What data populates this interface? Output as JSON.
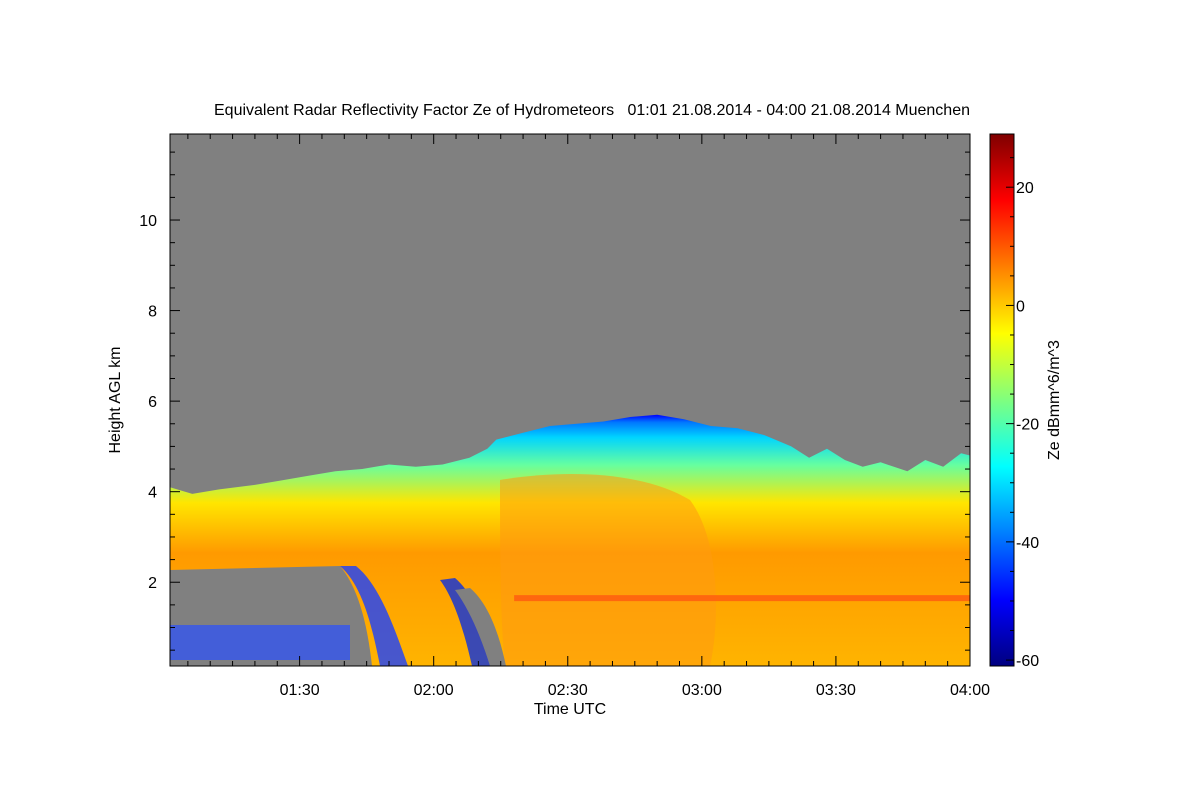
{
  "chart_data": {
    "type": "heatmap",
    "title": "Equivalent Radar Reflectivity Factor Ze of Hydrometeors   01:01 21.08.2014 - 04:00 21.08.2014 Muenchen",
    "xlabel": "Time UTC",
    "ylabel": "Height AGL km",
    "x_ticks": [
      "01:30",
      "02:00",
      "02:30",
      "03:00",
      "03:30",
      "04:00"
    ],
    "x_tick_minutes": [
      90,
      120,
      150,
      180,
      210,
      240
    ],
    "xlim_minutes": [
      61,
      240
    ],
    "y_ticks": [
      2,
      4,
      6,
      8,
      10
    ],
    "ylim": [
      0.15,
      11.9
    ],
    "colorbar": {
      "label": "Ze dBmm^6/m^3",
      "ticks": [
        20,
        0,
        -20,
        -40,
        -60
      ],
      "range": [
        -61,
        29
      ],
      "colors": [
        "#00007f",
        "#0000ff",
        "#007fff",
        "#00ffff",
        "#7fff7f",
        "#ffff00",
        "#ff7f00",
        "#ff0000",
        "#7f0000"
      ]
    },
    "background_color": "#808080",
    "echo_top_km": [
      [
        61,
        4.1
      ],
      [
        66,
        3.95
      ],
      [
        72,
        4.05
      ],
      [
        80,
        4.15
      ],
      [
        86,
        4.25
      ],
      [
        92,
        4.35
      ],
      [
        98,
        4.45
      ],
      [
        104,
        4.5
      ],
      [
        110,
        4.6
      ],
      [
        116,
        4.55
      ],
      [
        122,
        4.6
      ],
      [
        128,
        4.75
      ],
      [
        132,
        4.95
      ],
      [
        134,
        5.15
      ],
      [
        140,
        5.3
      ],
      [
        146,
        5.45
      ],
      [
        152,
        5.5
      ],
      [
        158,
        5.55
      ],
      [
        164,
        5.65
      ],
      [
        170,
        5.7
      ],
      [
        176,
        5.6
      ],
      [
        182,
        5.45
      ],
      [
        188,
        5.4
      ],
      [
        194,
        5.25
      ],
      [
        200,
        5.0
      ],
      [
        204,
        4.75
      ],
      [
        208,
        4.95
      ],
      [
        212,
        4.7
      ],
      [
        216,
        4.55
      ],
      [
        220,
        4.65
      ],
      [
        226,
        4.45
      ],
      [
        230,
        4.7
      ],
      [
        234,
        4.55
      ],
      [
        238,
        4.85
      ],
      [
        240,
        4.8
      ]
    ],
    "melting_layer_km": 1.65
  }
}
